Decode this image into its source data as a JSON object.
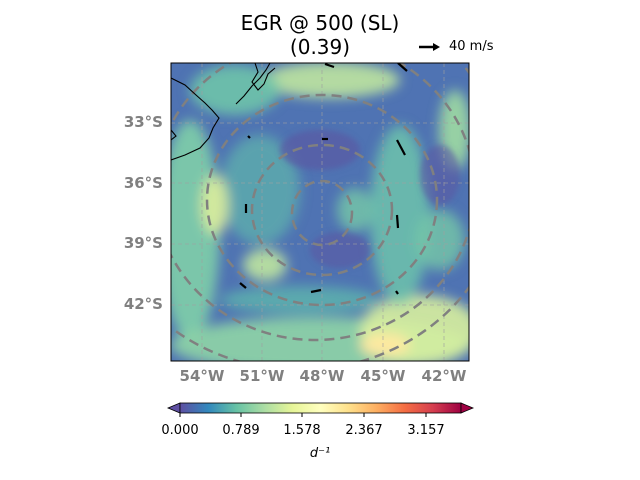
{
  "title": {
    "line1": "EGR @ 500 (SL)",
    "line2": "(0.39)"
  },
  "quiver_key": {
    "label": "40 m/s"
  },
  "map": {
    "lat_ticks": [
      "33°S",
      "36°S",
      "39°S",
      "42°S"
    ],
    "lon_ticks": [
      "54°W",
      "51°W",
      "48°W",
      "45°W",
      "42°W"
    ]
  },
  "colorbar": {
    "ticks": [
      "0.000",
      "0.789",
      "1.578",
      "2.367",
      "3.157"
    ],
    "unit_label": "d⁻¹",
    "colormap": "Spectral_r",
    "extend": "both"
  },
  "colors": {
    "low": "#5e4fa2",
    "mid": "#ffffbf",
    "high": "#9e0142",
    "contour": "#808080",
    "coast": "#000000"
  }
}
